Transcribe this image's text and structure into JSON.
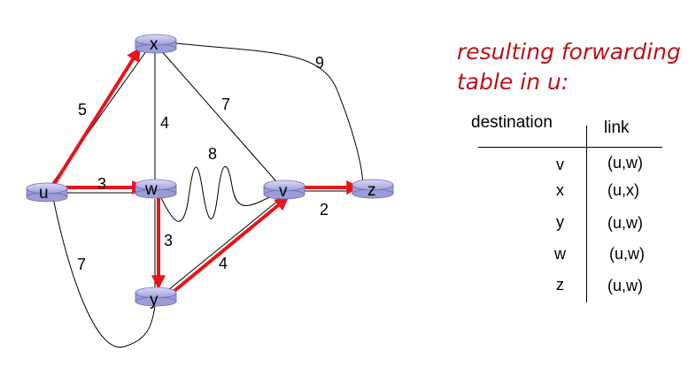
{
  "caption": {
    "line1": "resulting forwarding",
    "line2": "table in u:"
  },
  "graph": {
    "nodes": [
      {
        "id": "x",
        "label": "x"
      },
      {
        "id": "u",
        "label": "u"
      },
      {
        "id": "w",
        "label": "w"
      },
      {
        "id": "v",
        "label": "v"
      },
      {
        "id": "z",
        "label": "z"
      },
      {
        "id": "y",
        "label": "y"
      }
    ],
    "edges": [
      {
        "from": "u",
        "to": "x",
        "cost": "5",
        "in_tree": true
      },
      {
        "from": "u",
        "to": "w",
        "cost": "3",
        "in_tree": true
      },
      {
        "from": "u",
        "to": "y",
        "cost": "7",
        "in_tree": false
      },
      {
        "from": "x",
        "to": "w",
        "cost": "4",
        "in_tree": false
      },
      {
        "from": "x",
        "to": "v",
        "cost": "7",
        "in_tree": false
      },
      {
        "from": "x",
        "to": "z",
        "cost": "9",
        "in_tree": false
      },
      {
        "from": "w",
        "to": "v",
        "cost": "8",
        "in_tree": false
      },
      {
        "from": "w",
        "to": "y",
        "cost": "3",
        "in_tree": true
      },
      {
        "from": "y",
        "to": "v",
        "cost": "4",
        "in_tree": true
      },
      {
        "from": "v",
        "to": "z",
        "cost": "2",
        "in_tree": true
      }
    ],
    "tree_color": "#e8141a"
  },
  "table": {
    "headers": {
      "destination": "destination",
      "link": "link"
    },
    "rows": [
      {
        "destination": "v",
        "link": "(u,w)"
      },
      {
        "destination": "x",
        "link": "(u,x)"
      },
      {
        "destination": "y",
        "link": "(u,w)"
      },
      {
        "destination": "w",
        "link": "(u,w)"
      },
      {
        "destination": "z",
        "link": "(u,w)"
      }
    ]
  }
}
